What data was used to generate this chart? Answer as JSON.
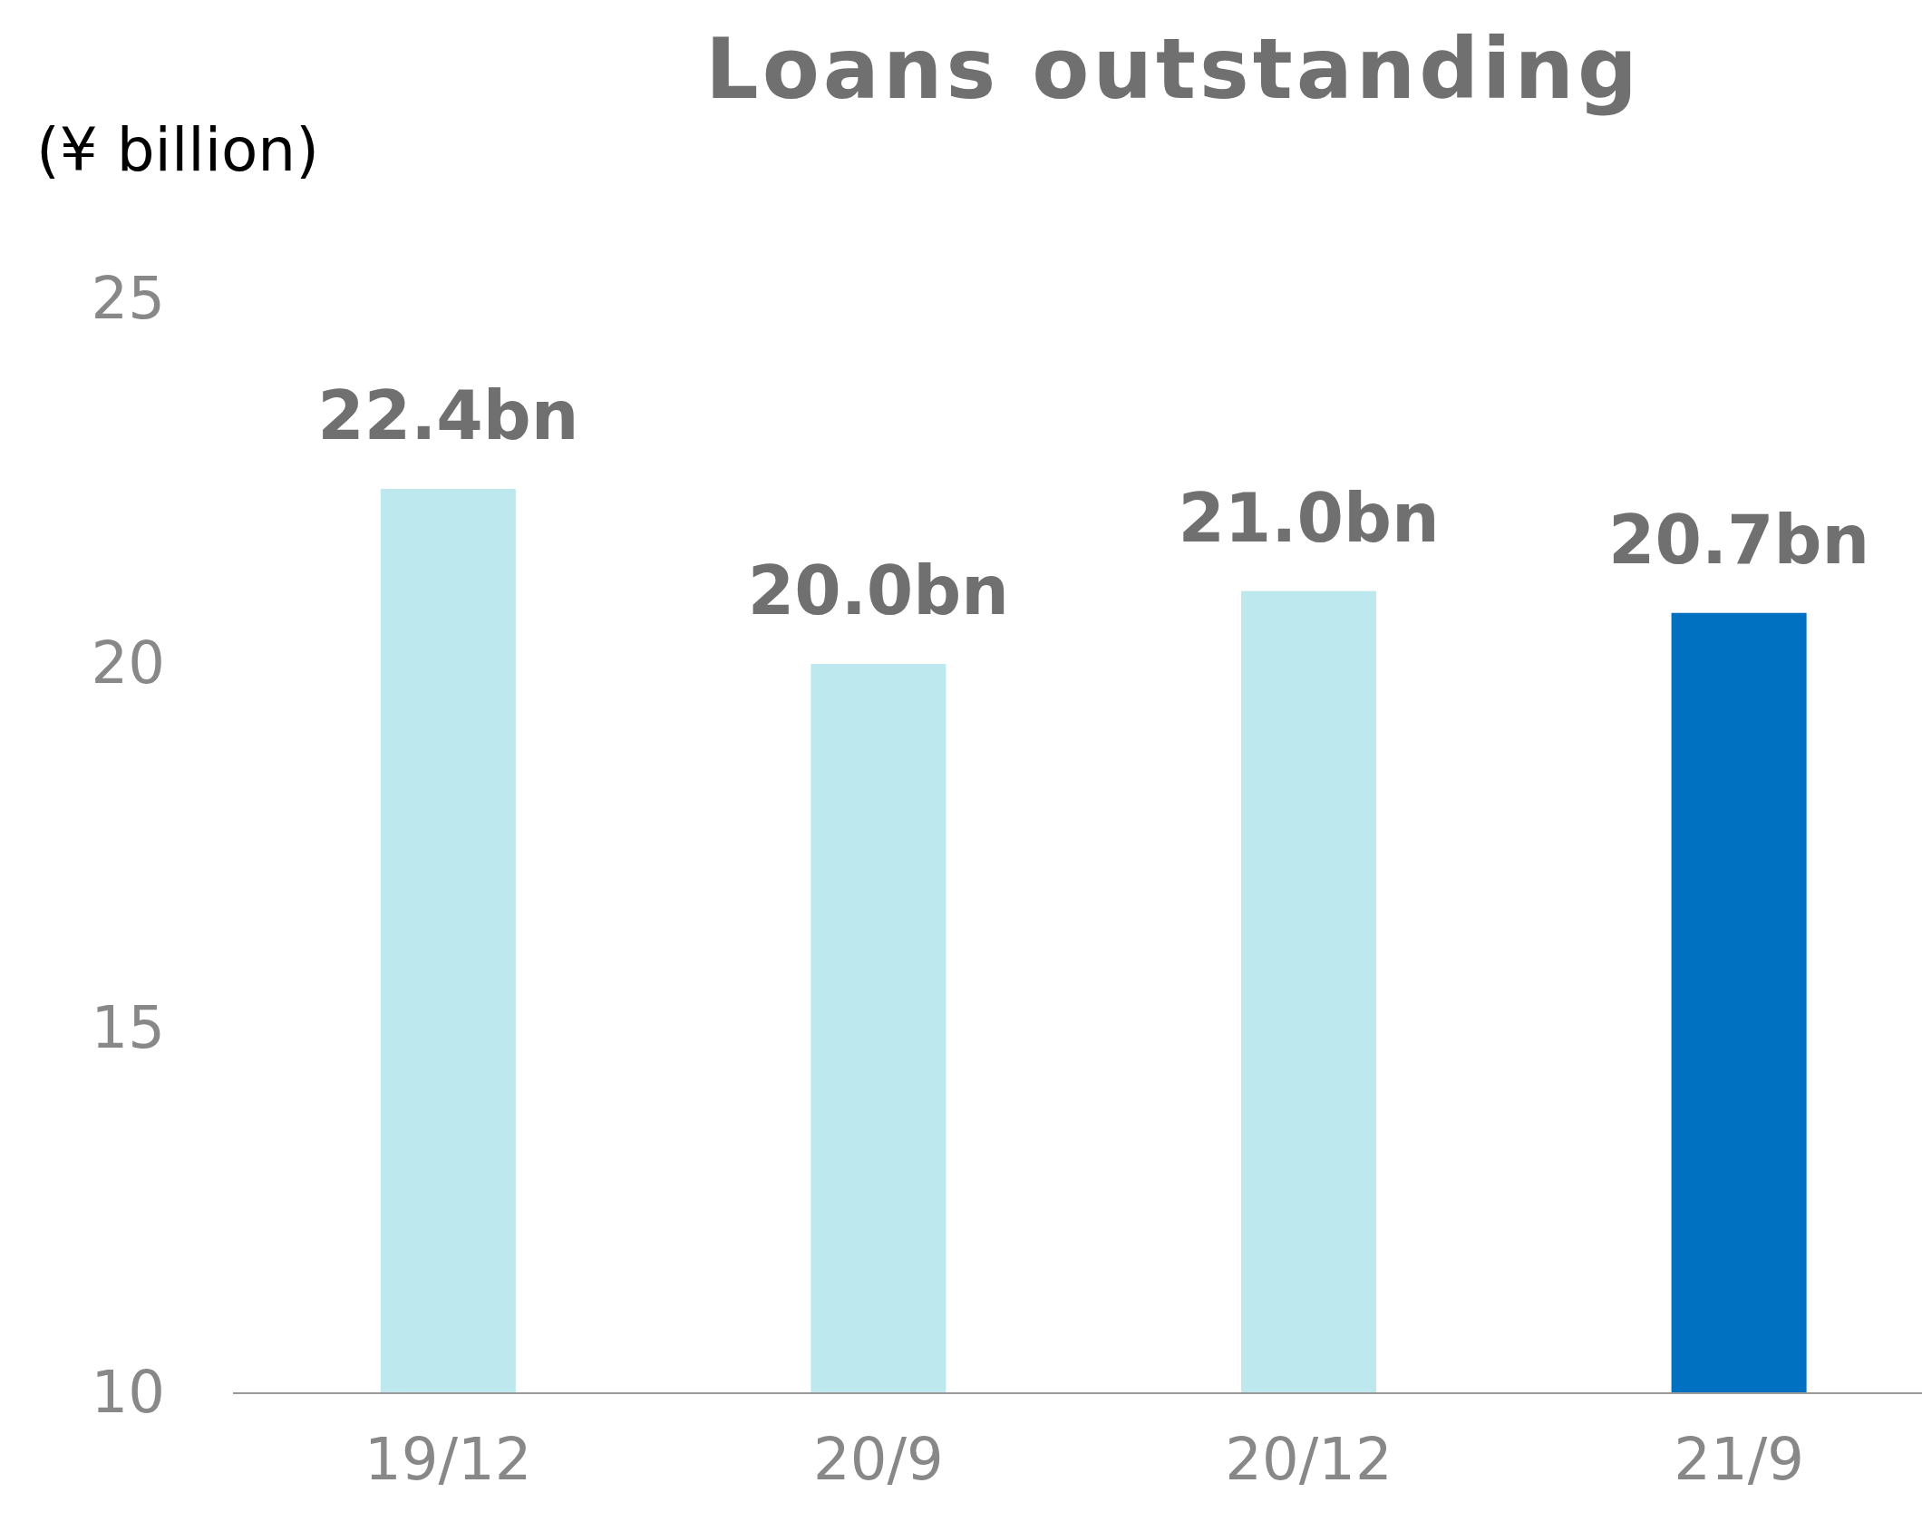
{
  "chart_data": {
    "type": "bar",
    "title": "Loans outstanding",
    "ylabel": "(¥ billion)",
    "categories": [
      "19/12",
      "20/9",
      "20/12",
      "21/9"
    ],
    "values": [
      22.4,
      20.0,
      21.0,
      20.7
    ],
    "colors": [
      "#bde8ee",
      "#bde8ee",
      "#bde8ee",
      "#0070c0"
    ],
    "value_labels": [
      "22.4bn",
      "20.0bn",
      "21.0bn",
      "20.7bn"
    ],
    "ylim": [
      10,
      25
    ],
    "yticks": [
      10,
      15,
      20,
      25
    ],
    "grid": false
  }
}
